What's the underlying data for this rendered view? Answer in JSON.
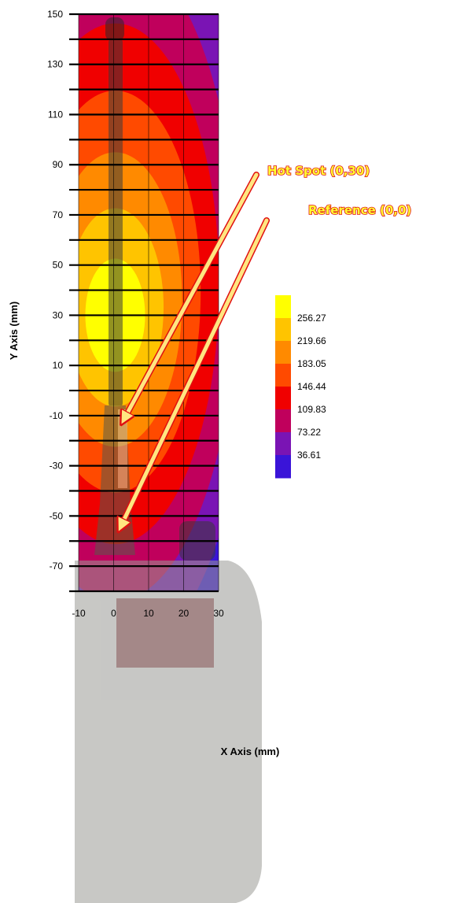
{
  "chart_data": {
    "type": "heatmap",
    "title": "",
    "xlabel": "X Axis (mm)",
    "ylabel": "Y Axis (mm)",
    "xlim": [
      -10,
      30
    ],
    "ylim": [
      -80,
      150
    ],
    "x_ticks": [
      -10,
      0,
      10,
      20,
      30
    ],
    "y_ticks": [
      150,
      130,
      110,
      90,
      70,
      50,
      30,
      10,
      -10,
      -30,
      -50,
      -70
    ],
    "grid": true,
    "colorbar": {
      "placement": "right",
      "labels": [
        "256.27",
        "219.66",
        "183.05",
        "146.44",
        "109.83",
        "73.22",
        "36.61"
      ],
      "colors": [
        "#ffff00",
        "#ffc400",
        "#ff8a00",
        "#ff4a00",
        "#f00000",
        "#c0005c",
        "#7a14b4",
        "#3a14d8"
      ]
    },
    "hot_spot": {
      "x": 0,
      "y": 30
    },
    "reference": {
      "x": 0,
      "y": 0
    }
  },
  "annotations": {
    "hot_spot_label": "Hot Spot (0,30)",
    "reference_label": "Reference (0,0)"
  }
}
